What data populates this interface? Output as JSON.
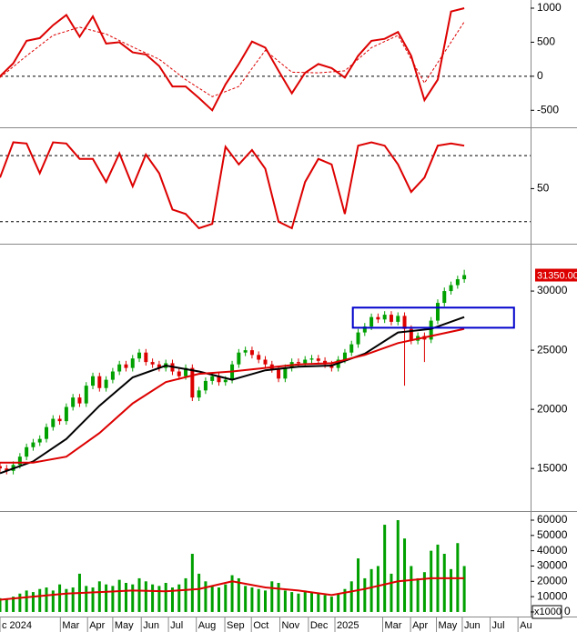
{
  "chart_data": [
    {
      "type": "line",
      "xlim": [
        0,
        80
      ],
      "ylim": [
        -750,
        1120
      ],
      "yticks": [
        -500,
        0,
        500,
        1000
      ],
      "hlines": [
        0
      ],
      "series": [
        {
          "color": "#dd0000",
          "style": "solid",
          "x": [
            0,
            2,
            4,
            6,
            8,
            10,
            12,
            14,
            16,
            18,
            20,
            22,
            24,
            26,
            28,
            30,
            32,
            34,
            36,
            38,
            40,
            42,
            44,
            46,
            48,
            50,
            52,
            54,
            56,
            58,
            60,
            62,
            64,
            66,
            68,
            70
          ],
          "values": [
            0,
            190,
            520,
            560,
            750,
            900,
            580,
            880,
            480,
            500,
            350,
            320,
            150,
            -150,
            -150,
            -320,
            -500,
            -120,
            180,
            510,
            420,
            80,
            -250,
            50,
            180,
            120,
            -20,
            300,
            520,
            550,
            650,
            300,
            -350,
            -50,
            950,
            1000
          ]
        },
        {
          "color": "#dd0000",
          "style": "dashed",
          "x": [
            0,
            4,
            8,
            12,
            16,
            20,
            24,
            28,
            32,
            36,
            40,
            44,
            48,
            52,
            56,
            60,
            64,
            68,
            70
          ],
          "values": [
            -20,
            300,
            600,
            720,
            620,
            430,
            250,
            -50,
            -300,
            -150,
            380,
            60,
            50,
            80,
            420,
            600,
            -100,
            500,
            800
          ]
        }
      ]
    },
    {
      "type": "line",
      "xlim": [
        0,
        80
      ],
      "ylim": [
        0,
        104
      ],
      "yticks": [
        50
      ],
      "hlines": [
        80,
        20
      ],
      "series": [
        {
          "color": "#dd0000",
          "style": "solid",
          "x": [
            0,
            2,
            4,
            6,
            8,
            10,
            12,
            14,
            16,
            18,
            20,
            22,
            24,
            26,
            28,
            30,
            32,
            34,
            36,
            38,
            40,
            42,
            44,
            46,
            48,
            50,
            52,
            54,
            56,
            58,
            60,
            62,
            64,
            66,
            68,
            70
          ],
          "values": [
            60,
            92,
            91,
            64,
            92,
            91,
            77,
            77,
            56,
            82,
            52,
            81,
            64,
            31,
            27,
            14,
            18,
            88,
            72,
            85,
            68,
            20,
            14,
            56,
            77,
            72,
            27,
            89,
            92,
            89,
            72,
            47,
            60,
            89,
            91,
            89
          ]
        }
      ]
    },
    {
      "type": "candlestick",
      "xlim": [
        0,
        80
      ],
      "ylim": [
        11400,
        33850
      ],
      "yticks": [
        15000,
        20000,
        25000,
        30000
      ],
      "up_color": "#00a000",
      "down_color": "#dd0000",
      "x": [
        0,
        1,
        2,
        3,
        4,
        5,
        6,
        7,
        8,
        9,
        10,
        11,
        12,
        13,
        14,
        15,
        16,
        17,
        18,
        19,
        20,
        21,
        22,
        23,
        24,
        25,
        26,
        27,
        28,
        29,
        30,
        31,
        32,
        33,
        34,
        35,
        36,
        37,
        38,
        39,
        40,
        41,
        42,
        43,
        44,
        45,
        46,
        47,
        48,
        49,
        50,
        51,
        52,
        53,
        54,
        55,
        56,
        57,
        58,
        59,
        60,
        61,
        62,
        63,
        64,
        65,
        66,
        67,
        68,
        69,
        70
      ],
      "open": [
        15200,
        15000,
        14800,
        15300,
        16000,
        16800,
        17200,
        17500,
        18500,
        19200,
        19000,
        20200,
        21000,
        20500,
        22000,
        22800,
        21800,
        22500,
        23200,
        23800,
        23500,
        24300,
        24800,
        24000,
        23800,
        23500,
        23900,
        23200,
        22800,
        23500,
        21000,
        21600,
        22400,
        22800,
        22300,
        22500,
        23800,
        24800,
        25000,
        24600,
        24200,
        23800,
        23400,
        22600,
        23500,
        24000,
        23900,
        24200,
        24300,
        24100,
        23800,
        23500,
        24200,
        24800,
        25500,
        26500,
        27000,
        27800,
        27600,
        28000,
        27400,
        27900,
        26800,
        25800,
        26200,
        25900,
        27500,
        29000,
        30000,
        30500,
        31000
      ],
      "high": [
        15500,
        15300,
        15600,
        16300,
        17100,
        17500,
        17800,
        18800,
        19500,
        19500,
        20500,
        21300,
        21300,
        22300,
        23100,
        23100,
        22800,
        23500,
        24100,
        24100,
        24600,
        25100,
        25100,
        24300,
        24100,
        24200,
        24200,
        23500,
        23800,
        23800,
        21900,
        22700,
        23100,
        23100,
        22800,
        24100,
        25100,
        25300,
        25300,
        24900,
        24500,
        24100,
        23700,
        23800,
        24300,
        24300,
        24500,
        24600,
        24600,
        24400,
        24100,
        24500,
        25100,
        25800,
        26800,
        27300,
        28100,
        28100,
        28300,
        28300,
        28200,
        28200,
        27100,
        26500,
        26500,
        27800,
        29300,
        30300,
        30800,
        31300,
        31800
      ],
      "low": [
        14700,
        14500,
        14500,
        15000,
        15700,
        16500,
        16900,
        17200,
        18200,
        18700,
        18700,
        19900,
        20200,
        20200,
        21700,
        21500,
        21500,
        22200,
        22900,
        23200,
        23200,
        24000,
        23700,
        23500,
        23200,
        23200,
        22900,
        22500,
        22500,
        20700,
        20700,
        21300,
        22100,
        22000,
        22000,
        22200,
        23500,
        24500,
        24300,
        23900,
        23500,
        23100,
        22300,
        22300,
        23200,
        23600,
        23600,
        23900,
        23800,
        23500,
        23200,
        23200,
        23900,
        24500,
        25200,
        26200,
        26700,
        27300,
        27300,
        27100,
        27100,
        22000,
        25500,
        25500,
        24000,
        25600,
        27200,
        28700,
        29700,
        30200,
        30700
      ],
      "close": [
        15000,
        14800,
        15300,
        16000,
        16800,
        17200,
        17500,
        18500,
        19200,
        19000,
        20200,
        21000,
        20500,
        22000,
        22800,
        21800,
        22500,
        23200,
        23800,
        23500,
        24300,
        24800,
        24000,
        23800,
        23500,
        23900,
        23200,
        22800,
        23500,
        21000,
        21600,
        22400,
        22800,
        22300,
        22500,
        23800,
        24800,
        25000,
        24600,
        24200,
        23800,
        23400,
        22600,
        23500,
        24000,
        23900,
        24200,
        24300,
        24100,
        23800,
        23500,
        24200,
        24800,
        25500,
        26500,
        27000,
        27800,
        27600,
        28000,
        27400,
        27900,
        26800,
        25800,
        26200,
        25900,
        27500,
        29000,
        30000,
        30500,
        31000,
        31350
      ],
      "series": [
        {
          "color": "#000000",
          "style": "solid",
          "x": [
            0,
            5,
            10,
            15,
            20,
            25,
            30,
            35,
            40,
            45,
            50,
            55,
            60,
            65,
            70
          ],
          "values": [
            14600,
            15600,
            17500,
            20300,
            22700,
            23700,
            23200,
            22500,
            23300,
            23600,
            23700,
            24700,
            26500,
            26800,
            27800
          ]
        },
        {
          "color": "#dd0000",
          "style": "solid",
          "x": [
            0,
            5,
            10,
            15,
            20,
            25,
            30,
            35,
            40,
            45,
            50,
            55,
            60,
            65,
            70
          ],
          "values": [
            15500,
            15500,
            16000,
            18000,
            20500,
            22300,
            23000,
            23200,
            23500,
            23800,
            23900,
            24600,
            25600,
            26200,
            26800
          ]
        }
      ],
      "box": {
        "x": [
          53.2,
          77.5
        ],
        "y": [
          26900,
          28600
        ],
        "color": "#0000cc"
      },
      "last_price": {
        "value": 31350,
        "label": "31350.00",
        "color": "#dd0000"
      }
    },
    {
      "type": "bar",
      "xlim": [
        0,
        80
      ],
      "ylim": [
        -3000,
        64750
      ],
      "yticks": [
        0,
        10000,
        20000,
        30000,
        40000,
        50000,
        60000
      ],
      "color": "#00a000",
      "unit_label": "x1000",
      "x": [
        0,
        1,
        2,
        3,
        4,
        5,
        6,
        7,
        8,
        9,
        10,
        11,
        12,
        13,
        14,
        15,
        16,
        17,
        18,
        19,
        20,
        21,
        22,
        23,
        24,
        25,
        26,
        27,
        28,
        29,
        30,
        31,
        32,
        33,
        34,
        35,
        36,
        37,
        38,
        39,
        40,
        41,
        42,
        43,
        44,
        45,
        46,
        47,
        48,
        49,
        50,
        51,
        52,
        53,
        54,
        55,
        56,
        57,
        58,
        59,
        60,
        61,
        62,
        63,
        64,
        65,
        66,
        67,
        68,
        69,
        70
      ],
      "values": [
        9000,
        8000,
        10000,
        12000,
        14000,
        13000,
        15000,
        16000,
        14000,
        18000,
        15000,
        16000,
        25000,
        17000,
        16000,
        20000,
        18000,
        17000,
        21000,
        19000,
        18000,
        22000,
        20000,
        18000,
        17000,
        19000,
        16000,
        18000,
        22000,
        38000,
        25000,
        20000,
        17000,
        16000,
        18000,
        24000,
        22000,
        17000,
        16000,
        15000,
        14000,
        20000,
        19000,
        14000,
        13000,
        12000,
        14000,
        13000,
        12000,
        11000,
        10000,
        12000,
        15000,
        20000,
        35000,
        22000,
        28000,
        30000,
        57000,
        25000,
        60000,
        48000,
        30000,
        22000,
        26000,
        40000,
        44000,
        38000,
        28000,
        45000,
        30000
      ],
      "series": [
        {
          "color": "#dd0000",
          "style": "solid",
          "x": [
            0,
            5,
            10,
            15,
            20,
            25,
            30,
            35,
            40,
            45,
            50,
            55,
            60,
            65,
            70
          ],
          "values": [
            8000,
            10000,
            12000,
            13000,
            14000,
            13500,
            15000,
            20000,
            16000,
            14000,
            11000,
            15000,
            20000,
            22000,
            22000
          ]
        }
      ],
      "xticks": [
        {
          "value": 0,
          "label": "c 2024"
        },
        {
          "value": 9.1,
          "label": "Mar"
        },
        {
          "value": 13.2,
          "label": "Apr"
        },
        {
          "value": 17.0,
          "label": "May"
        },
        {
          "value": 21.3,
          "label": "Jun"
        },
        {
          "value": 25.4,
          "label": "Jul"
        },
        {
          "value": 29.6,
          "label": "Aug"
        },
        {
          "value": 33.9,
          "label": "Sep"
        },
        {
          "value": 37.9,
          "label": "Oct"
        },
        {
          "value": 42.2,
          "label": "Nov"
        },
        {
          "value": 46.5,
          "label": "Dec"
        },
        {
          "value": 50.5,
          "label": "2025"
        },
        {
          "value": 57.7,
          "label": "Mar"
        },
        {
          "value": 61.9,
          "label": "Apr"
        },
        {
          "value": 65.8,
          "label": "May"
        },
        {
          "value": 69.7,
          "label": "Jun"
        },
        {
          "value": 73.9,
          "label": "Jul"
        },
        {
          "value": 78.1,
          "label": "Au"
        }
      ]
    }
  ]
}
